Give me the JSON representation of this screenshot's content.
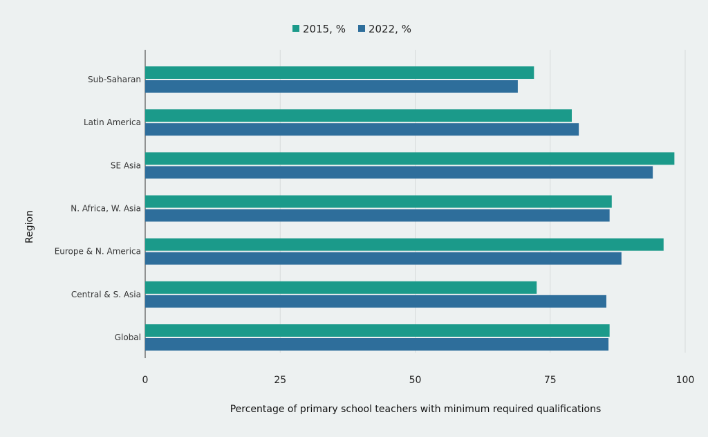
{
  "chart_data": {
    "type": "bar",
    "orientation": "horizontal",
    "title": "",
    "xlabel": "Percentage of primary school teachers with minimum required qualifications",
    "ylabel": "Region",
    "xlim": [
      0,
      100
    ],
    "xticks": [
      0,
      25,
      50,
      75,
      100
    ],
    "grid": true,
    "legend_position": "top-center",
    "categories": [
      "Sub-Saharan",
      "Latin America",
      "SE Asia",
      "N. Africa, W. Asia",
      "Europe & N. America",
      "Central & S. Asia",
      "Global"
    ],
    "series": [
      {
        "name": "2015, %",
        "color": "#1b9a8a",
        "values": [
          72,
          79,
          98,
          86.4,
          96,
          72.5,
          86
        ]
      },
      {
        "name": "2022, %",
        "color": "#2e6e9b",
        "values": [
          69,
          80.3,
          94,
          86,
          88.2,
          85.4,
          85.8
        ]
      }
    ]
  }
}
